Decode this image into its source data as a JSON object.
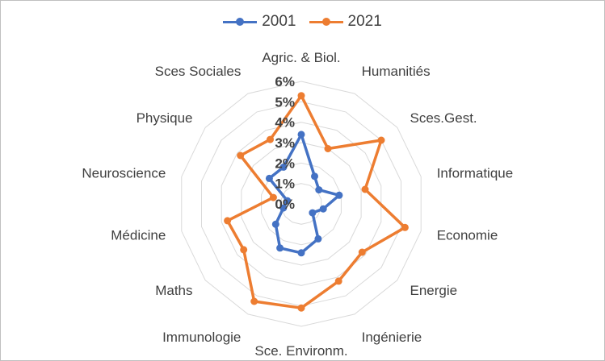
{
  "chart_data": {
    "type": "radar",
    "categories": [
      "Agric. & Biol.",
      "Humanitiés",
      "Sces.Gest.",
      "Informatique",
      "Economie",
      "Energie",
      "Ingénierie",
      "Sce. Environm.",
      "Immunologie",
      "Maths",
      "Médicine",
      "Neuroscience",
      "Physique",
      "Sces Sociales"
    ],
    "series": [
      {
        "name": "2001",
        "color": "#4472C4",
        "values": [
          3.4,
          1.5,
          1.1,
          1.9,
          1.1,
          0.7,
          1.9,
          2.4,
          2.4,
          1.6,
          0.9,
          0.7,
          2.0,
          2.0
        ]
      },
      {
        "name": "2021",
        "color": "#ED7D31",
        "values": [
          5.3,
          3.0,
          5.0,
          3.2,
          5.2,
          3.8,
          4.2,
          5.1,
          5.3,
          3.6,
          3.7,
          1.4,
          3.8,
          3.5
        ]
      }
    ],
    "rlim": [
      0,
      6
    ],
    "tick_labels": [
      "0%",
      "1%",
      "2%",
      "3%",
      "4%",
      "5%",
      "6%"
    ],
    "legend_position": "top",
    "grid": true
  }
}
